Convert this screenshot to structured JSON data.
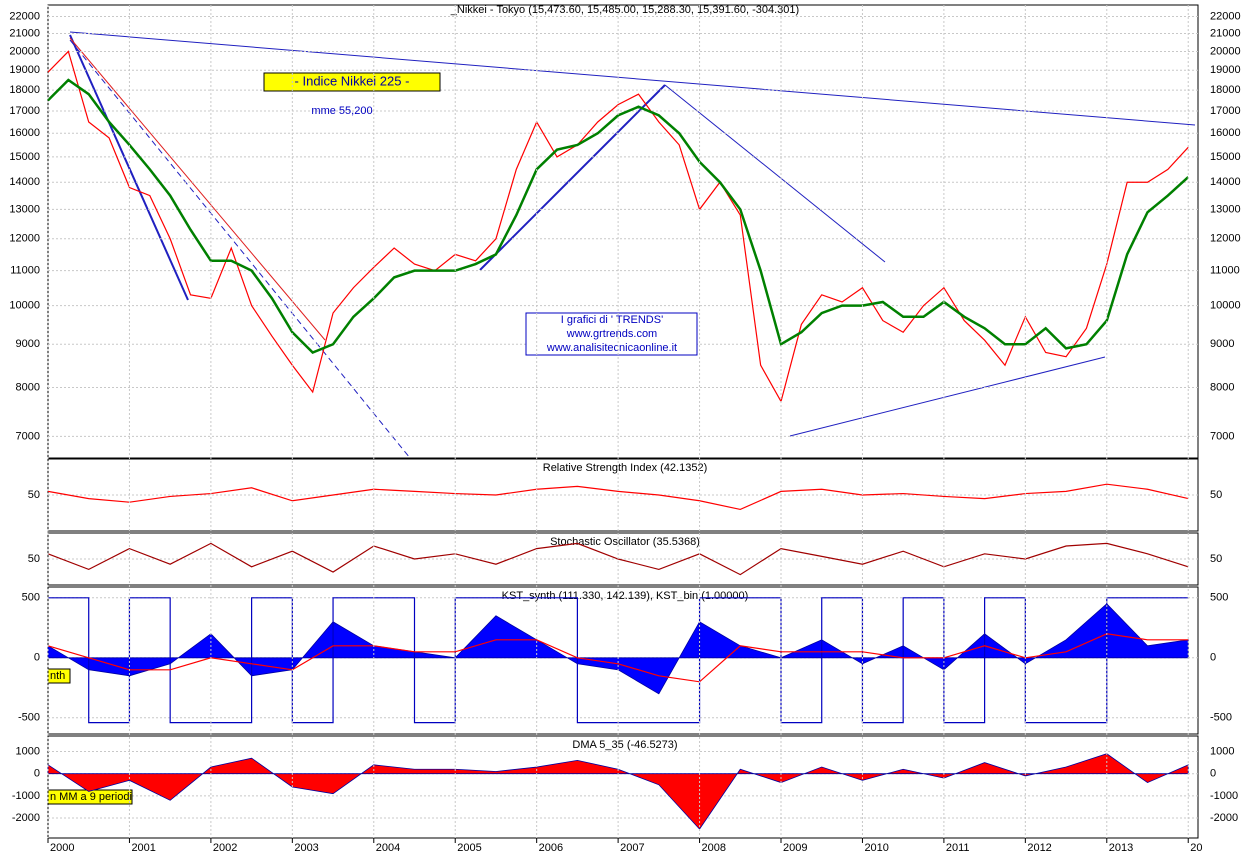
{
  "chart_data": [
    {
      "type": "line",
      "title": "_Nikkei - Tokyo (15,473.60, 15,485.00, 15,288.30, 15,391.60, -304.301)",
      "log_scale": true,
      "grid": true,
      "annotations": [
        "- Indice Nikkei 225 -",
        "mme 55,200",
        "I grafici di ' TRENDS'",
        "www.grtrends.com",
        "www.analisitecnicaonline.it"
      ],
      "xlim": [
        2000,
        2014.12
      ],
      "ylim": [
        6600,
        22700
      ],
      "yticks": [
        7000,
        8000,
        9000,
        10000,
        11000,
        12000,
        13000,
        14000,
        15000,
        16000,
        17000,
        18000,
        19000,
        20000,
        21000,
        22000
      ],
      "x": [
        2000,
        2000.25,
        2000.5,
        2000.75,
        2001,
        2001.25,
        2001.5,
        2001.75,
        2002,
        2002.25,
        2002.5,
        2002.75,
        2003,
        2003.25,
        2003.5,
        2003.75,
        2004,
        2004.25,
        2004.5,
        2004.75,
        2005,
        2005.25,
        2005.5,
        2005.75,
        2006,
        2006.25,
        2006.5,
        2006.75,
        2007,
        2007.25,
        2007.5,
        2007.75,
        2008,
        2008.25,
        2008.5,
        2008.75,
        2009,
        2009.25,
        2009.5,
        2009.75,
        2010,
        2010.25,
        2010.5,
        2010.75,
        2011,
        2011.25,
        2011.5,
        2011.75,
        2012,
        2012.25,
        2012.5,
        2012.75,
        2013,
        2013.25,
        2013.5,
        2013.75,
        2014
      ],
      "series": [
        {
          "color": "#ff0000",
          "values": [
            18900,
            20000,
            16500,
            15800,
            13800,
            13500,
            12000,
            10300,
            10200,
            11700,
            10000,
            9200,
            8500,
            7900,
            9800,
            10500,
            11100,
            11700,
            11200,
            11000,
            11500,
            11300,
            12000,
            14500,
            16500,
            15000,
            15500,
            16500,
            17300,
            17800,
            16500,
            15500,
            13000,
            14000,
            12800,
            8500,
            7700,
            9500,
            10300,
            10100,
            10500,
            9600,
            9300,
            10000,
            10500,
            9600,
            9100,
            8500,
            9700,
            8800,
            8700,
            9400,
            11200,
            14000,
            14000,
            14500,
            15400
          ]
        },
        {
          "color": "#008000",
          "values": [
            17500,
            18500,
            17800,
            16500,
            15500,
            14500,
            13500,
            12300,
            11300,
            11300,
            11000,
            10200,
            9300,
            8800,
            9000,
            9700,
            10200,
            10800,
            11000,
            11000,
            11000,
            11200,
            11500,
            12800,
            14500,
            15300,
            15500,
            16000,
            16800,
            17200,
            16800,
            16000,
            14800,
            14000,
            13000,
            11000,
            9000,
            9300,
            9800,
            10000,
            10000,
            10100,
            9700,
            9700,
            10100,
            9700,
            9400,
            9000,
            9000,
            9400,
            8900,
            9000,
            9600,
            11500,
            12900,
            13500,
            14200
          ]
        }
      ]
    },
    {
      "type": "line",
      "title": "Relative Strength Index (42.1352)",
      "grid": true,
      "xlim": [
        2000,
        2014.12
      ],
      "ylim": [
        0,
        100
      ],
      "yticks": [
        50
      ],
      "x": [
        2000,
        2000.5,
        2001,
        2001.5,
        2002,
        2002.5,
        2003,
        2003.5,
        2004,
        2004.5,
        2005,
        2005.5,
        2006,
        2006.5,
        2007,
        2007.5,
        2008,
        2008.5,
        2009,
        2009.5,
        2010,
        2010.5,
        2011,
        2011.5,
        2012,
        2012.5,
        2013,
        2013.5,
        2014
      ],
      "series": [
        {
          "color": "#ff0000",
          "values": [
            55,
            45,
            40,
            48,
            52,
            60,
            42,
            50,
            58,
            55,
            52,
            50,
            58,
            62,
            55,
            50,
            42,
            30,
            55,
            58,
            50,
            52,
            48,
            45,
            52,
            55,
            65,
            58,
            45
          ]
        }
      ]
    },
    {
      "type": "line",
      "title": "Stochastic Oscillator (35.5368)",
      "grid": true,
      "xlim": [
        2000,
        2014.12
      ],
      "ylim": [
        0,
        100
      ],
      "yticks": [
        50
      ],
      "x": [
        2000,
        2000.5,
        2001,
        2001.5,
        2002,
        2002.5,
        2003,
        2003.5,
        2004,
        2004.5,
        2005,
        2005.5,
        2006,
        2006.5,
        2007,
        2007.5,
        2008,
        2008.5,
        2009,
        2009.5,
        2010,
        2010.5,
        2011,
        2011.5,
        2012,
        2012.5,
        2013,
        2013.5,
        2014
      ],
      "series": [
        {
          "color": "#a00000",
          "values": [
            60,
            30,
            70,
            40,
            80,
            35,
            65,
            25,
            75,
            50,
            60,
            40,
            70,
            80,
            50,
            30,
            60,
            20,
            70,
            55,
            40,
            65,
            35,
            60,
            50,
            75,
            80,
            60,
            35
          ]
        }
      ]
    },
    {
      "type": "line",
      "title": "KST_synth (111.330, 142.139), KST_bin (1.00000)",
      "label": "nth",
      "grid": true,
      "xlim": [
        2000,
        2014.12
      ],
      "ylim": [
        -635,
        590
      ],
      "yticks": [
        -500,
        0,
        500
      ],
      "x": [
        2000,
        2000.5,
        2001,
        2001.5,
        2002,
        2002.5,
        2003,
        2003.5,
        2004,
        2004.5,
        2005,
        2005.5,
        2006,
        2006.5,
        2007,
        2007.5,
        2008,
        2008.5,
        2009,
        2009.5,
        2010,
        2010.5,
        2011,
        2011.5,
        2012,
        2012.5,
        2013,
        2013.5,
        2014
      ],
      "series": [
        {
          "color": "#0000ff",
          "area": true,
          "values": [
            100,
            -100,
            -150,
            -50,
            200,
            -150,
            -100,
            300,
            100,
            50,
            0,
            350,
            150,
            -50,
            -100,
            -300,
            300,
            100,
            0,
            150,
            -50,
            100,
            -100,
            200,
            -50,
            150,
            450,
            100,
            150
          ]
        },
        {
          "color": "#0000c0",
          "step": true,
          "values": [
            500,
            -540,
            500,
            -540,
            -540,
            500,
            -540,
            500,
            500,
            -540,
            500,
            500,
            500,
            -540,
            -540,
            -540,
            500,
            500,
            -540,
            500,
            -540,
            500,
            -540,
            500,
            -540,
            -540,
            500,
            500,
            500
          ]
        },
        {
          "color": "#ff0000",
          "values": [
            100,
            0,
            -100,
            -100,
            0,
            -50,
            -100,
            100,
            100,
            50,
            50,
            150,
            150,
            0,
            -50,
            -150,
            -200,
            100,
            50,
            50,
            50,
            0,
            0,
            100,
            0,
            50,
            200,
            150,
            150
          ]
        }
      ]
    },
    {
      "type": "line",
      "title": "DMA 5_35 (-46.5273)",
      "label": "n MM  a 9 periodi",
      "grid": true,
      "xlim": [
        2000,
        2014.12
      ],
      "ylim": [
        -2900,
        1700
      ],
      "yticks": [
        -2000,
        -1000,
        0,
        1000
      ],
      "xticks": [
        2000,
        2001,
        2002,
        2003,
        2004,
        2005,
        2006,
        2007,
        2008,
        2009,
        2010,
        2011,
        2012,
        2013,
        {
          "value": 2014,
          "label": "20"
        }
      ],
      "x": [
        2000,
        2000.5,
        2001,
        2001.5,
        2002,
        2002.5,
        2003,
        2003.5,
        2004,
        2004.5,
        2005,
        2005.5,
        2006,
        2006.5,
        2007,
        2007.5,
        2008,
        2008.5,
        2009,
        2009.5,
        2010,
        2010.5,
        2011,
        2011.5,
        2012,
        2012.5,
        2013,
        2013.5,
        2014
      ],
      "series": [
        {
          "color": "#ff0000",
          "area": true,
          "values": [
            400,
            -800,
            -300,
            -1200,
            300,
            700,
            -600,
            -900,
            400,
            200,
            200,
            100,
            300,
            600,
            200,
            -500,
            -2500,
            200,
            -400,
            300,
            -300,
            200,
            -200,
            500,
            -100,
            300,
            900,
            -400,
            400
          ]
        }
      ]
    }
  ]
}
